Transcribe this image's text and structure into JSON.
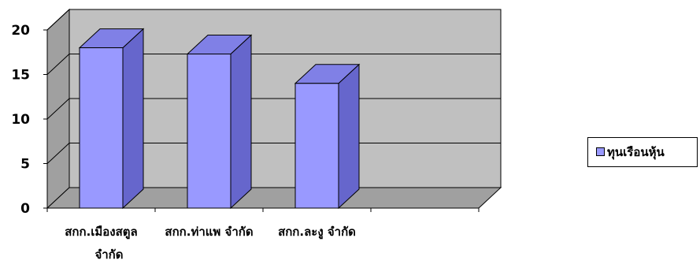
{
  "chart_data": {
    "type": "bar",
    "categories": [
      "สกก.เมืองสตูล จำกัด",
      "สกก.ท่าแพ จำกัด",
      "สกก.ละงู จำกัด"
    ],
    "series": [
      {
        "name": "ทุนเรือนหุ้น",
        "values": [
          18,
          17.3,
          14
        ]
      }
    ],
    "ylim": [
      0,
      20
    ],
    "yticks": [
      0,
      5,
      10,
      15,
      20
    ],
    "grid": true,
    "legend": "right",
    "three_d": true
  },
  "colors": {
    "bar_front": "#9999ff",
    "bar_top": "#8080e6",
    "bar_side": "#6666cc",
    "wall": "#c0c0c0",
    "floor": "#a0a0a0"
  }
}
